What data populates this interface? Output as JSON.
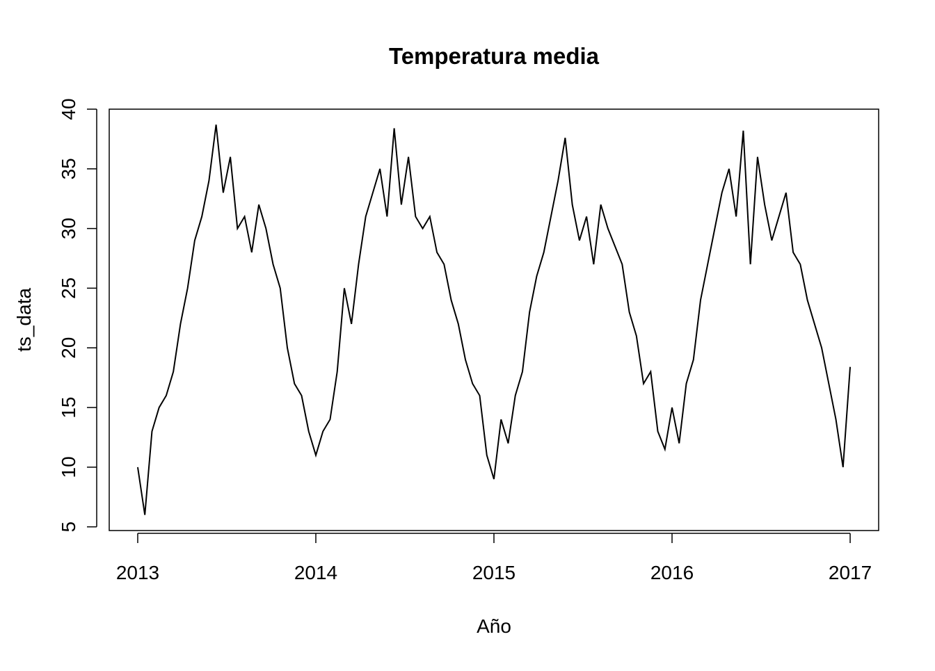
{
  "chart_data": {
    "type": "line",
    "title": "Temperatura media",
    "x_label": "Año",
    "y_label": "ts_data",
    "x": [
      2013,
      2013.04,
      2013.08,
      2013.12,
      2013.16,
      2013.2,
      2013.24,
      2013.28,
      2013.32,
      2013.36,
      2013.4,
      2013.44,
      2013.48,
      2013.52,
      2013.56,
      2013.6,
      2013.64,
      2013.68,
      2013.72,
      2013.76,
      2013.8,
      2013.84,
      2013.88,
      2013.92,
      2013.96,
      2014,
      2014.04,
      2014.08,
      2014.12,
      2014.16,
      2014.2,
      2014.24,
      2014.28,
      2014.32,
      2014.36,
      2014.4,
      2014.44,
      2014.48,
      2014.52,
      2014.56,
      2014.6,
      2014.64,
      2014.68,
      2014.72,
      2014.76,
      2014.8,
      2014.84,
      2014.88,
      2014.92,
      2014.96,
      2015,
      2015.04,
      2015.08,
      2015.12,
      2015.16,
      2015.2,
      2015.24,
      2015.28,
      2015.32,
      2015.36,
      2015.4,
      2015.44,
      2015.48,
      2015.52,
      2015.56,
      2015.6,
      2015.64,
      2015.68,
      2015.72,
      2015.76,
      2015.8,
      2015.84,
      2015.88,
      2015.92,
      2015.96,
      2016,
      2016.04,
      2016.08,
      2016.12,
      2016.16,
      2016.2,
      2016.24,
      2016.28,
      2016.32,
      2016.36,
      2016.4,
      2016.44,
      2016.48,
      2016.52,
      2016.56,
      2016.6,
      2016.64,
      2016.68,
      2016.72,
      2016.76,
      2016.8,
      2016.84,
      2016.88,
      2016.92,
      2016.96,
      2017
    ],
    "values": [
      10,
      6,
      13,
      15,
      16,
      18,
      22,
      25,
      29,
      31,
      34,
      38.7,
      33,
      36,
      30,
      31,
      28,
      32,
      30,
      27,
      25,
      20,
      17,
      16,
      13,
      11,
      13,
      14,
      18,
      25,
      22,
      27,
      31,
      33,
      35,
      31,
      38.4,
      32,
      36,
      31,
      30,
      31,
      28,
      27,
      24,
      22,
      19,
      17,
      16,
      11,
      9,
      14,
      12,
      16,
      18,
      23,
      26,
      28,
      31,
      34,
      37.6,
      32,
      29,
      31,
      27,
      32,
      30,
      28.5,
      27,
      23,
      21,
      17,
      18,
      13,
      11.5,
      15,
      12,
      17,
      19,
      24,
      27,
      30,
      33,
      35,
      31,
      38.2,
      27,
      36,
      32,
      29,
      31,
      33,
      28,
      27,
      24,
      22,
      20,
      17,
      14,
      10,
      18.4
    ],
    "color": "#000000",
    "xlim": [
      2012.84,
      2017.16
    ],
    "xticks": [
      2013,
      2014,
      2015,
      2016,
      2017
    ],
    "ylim": [
      4.69,
      40.0
    ],
    "yticks": [
      5,
      10,
      15,
      20,
      25,
      30,
      35,
      40
    ]
  }
}
